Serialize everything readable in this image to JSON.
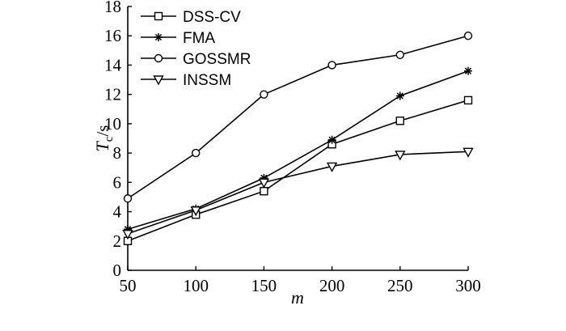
{
  "chart_data": {
    "type": "line",
    "xlabel": "m",
    "ylabel": {
      "main": "T",
      "sub": "c",
      "unit": "/s"
    },
    "xlim": [
      50,
      300
    ],
    "ylim": [
      0,
      18
    ],
    "xticks": [
      50,
      100,
      150,
      200,
      250,
      300
    ],
    "yticks": [
      0,
      2,
      4,
      6,
      8,
      10,
      12,
      14,
      16,
      18
    ],
    "grid": false,
    "legend_position": "top-left",
    "x": [
      50,
      100,
      150,
      200,
      250,
      300
    ],
    "series": [
      {
        "name": "DSS-CV",
        "marker": "square",
        "values": [
          2.0,
          3.8,
          5.4,
          8.6,
          10.2,
          11.6
        ]
      },
      {
        "name": "FMA",
        "marker": "asterisk",
        "values": [
          2.8,
          4.2,
          6.3,
          8.9,
          11.9,
          13.6
        ]
      },
      {
        "name": "GOSSMR",
        "marker": "circle",
        "values": [
          4.9,
          8.0,
          12.0,
          14.0,
          14.7,
          16.0
        ]
      },
      {
        "name": "INSSM",
        "marker": "triangle-down",
        "values": [
          2.5,
          4.1,
          6.0,
          7.1,
          7.9,
          8.1
        ]
      }
    ]
  }
}
